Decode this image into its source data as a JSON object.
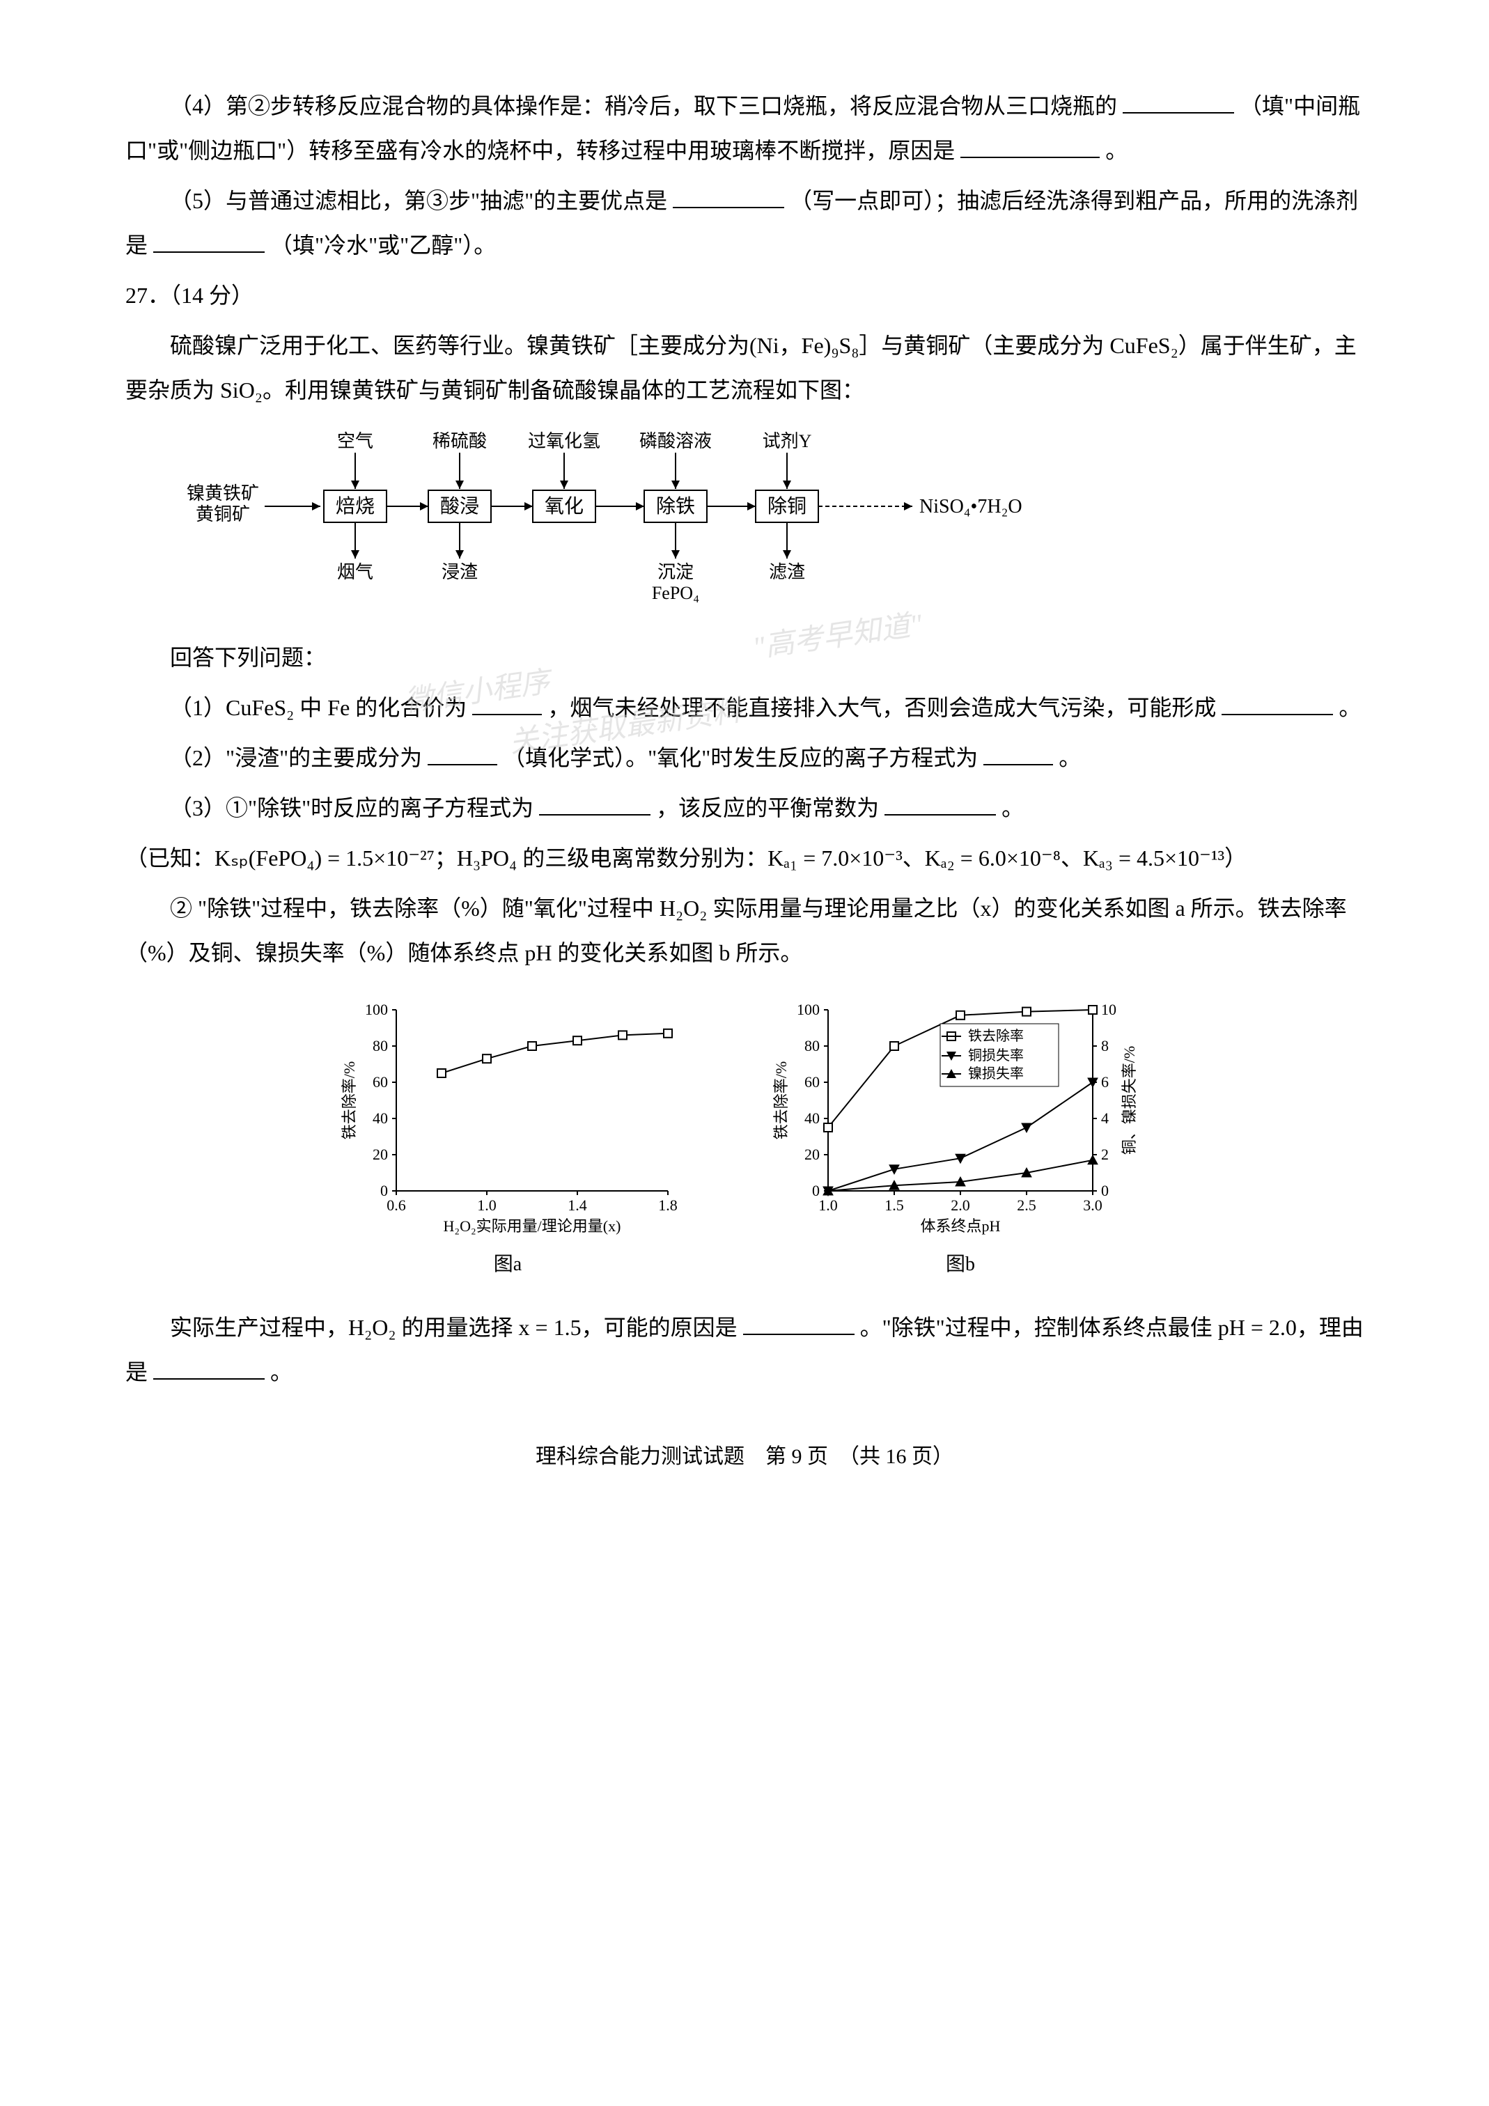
{
  "q_prev": {
    "item4": "（4）第②步转移反应混合物的具体操作是：稍冷后，取下三口烧瓶，将反应混合物从三口烧瓶的",
    "item4_hint": "（填\"中间瓶口\"或\"侧边瓶口\"）转移至盛有冷水的烧杯中，转移过程中用玻璃棒不断搅拌，原因是",
    "item4_end": "。",
    "item5": "（5）与普通过滤相比，第③步\"抽滤\"的主要优点是",
    "item5_hint": "（写一点即可）；抽滤后经洗涤得到粗产品，所用的洗涤剂是",
    "item5_hint2": "（填\"冷水\"或\"乙醇\"）。"
  },
  "q27": {
    "header": "27．（14 分）",
    "intro1": "硫酸镍广泛用于化工、医药等行业。镍黄铁矿［主要成分为(Ni，Fe)₉S₈］与黄铜矿（主要成分为 CuFeS₂）属于伴生矿，主要杂质为 SiO₂。利用镍黄铁矿与黄铜矿制备硫酸镍晶体的工艺流程如下图：",
    "answer_prompt": "回答下列问题：",
    "sub1": "（1）CuFeS₂ 中 Fe 的化合价为",
    "sub1_mid": "，烟气未经处理不能直接排入大气，否则会造成大气污染，可能形成",
    "sub1_end": "。",
    "sub2": "（2）\"浸渣\"的主要成分为",
    "sub2_hint": "（填化学式）。\"氧化\"时发生反应的离子方程式为",
    "sub2_end": "。",
    "sub3_1": "（3）①\"除铁\"时反应的离子方程式为",
    "sub3_1_mid": "，该反应的平衡常数为",
    "sub3_1_end": "。",
    "sub3_known": "（已知：Kₛₚ(FePO₄) = 1.5×10⁻²⁷；H₃PO₄ 的三级电离常数分别为：Kₐ₁ = 7.0×10⁻³、Kₐ₂ = 6.0×10⁻⁸、Kₐ₃ = 4.5×10⁻¹³）",
    "sub3_2a": "② \"除铁\"过程中，铁去除率（%）随\"氧化\"过程中 H₂O₂ 实际用量与理论用量之比（x）的变化关系如图 a 所示。铁去除率（%）及铜、镍损失率（%）随体系终点 pH 的变化关系如图 b 所示。",
    "sub3_2b": "实际生产过程中，H₂O₂ 的用量选择 x = 1.5，可能的原因是",
    "sub3_2b_mid": "。\"除铁\"过程中，控制体系终点最佳 pH = 2.0，理由是",
    "sub3_2b_end": "。"
  },
  "flowchart": {
    "input_label": "镍黄铁矿\n黄铜矿",
    "top_labels": [
      "空气",
      "稀硫酸",
      "过氧化氢",
      "磷酸溶液",
      "试剂Y"
    ],
    "boxes": [
      "焙烧",
      "酸浸",
      "氧化",
      "除铁",
      "除铜"
    ],
    "output": "NiSO₄•7H₂O",
    "bottom_labels": [
      "烟气",
      "浸渣",
      "",
      "沉淀\nFePO₄",
      "滤渣"
    ]
  },
  "chart_a": {
    "type": "line",
    "title": "图a",
    "xlabel": "H₂O₂实际用量/理论用量(x)",
    "ylabel": "铁去除率/%",
    "xlim": [
      0.6,
      1.8
    ],
    "ylim": [
      0,
      100
    ],
    "xtick_step": 0.4,
    "ytick_step": 20,
    "x_values": [
      0.8,
      1.0,
      1.2,
      1.4,
      1.6,
      1.8
    ],
    "y_values": [
      65,
      73,
      80,
      83,
      86,
      87
    ],
    "marker": "square",
    "line_color": "#000000",
    "marker_fill": "#ffffff",
    "background_color": "#ffffff",
    "font_size": 22
  },
  "chart_b": {
    "type": "line",
    "title": "图b",
    "xlabel": "体系终点pH",
    "ylabel_left": "铁去除率/%",
    "ylabel_right": "铜、镍损失率/%",
    "xlim": [
      1.0,
      3.0
    ],
    "ylim_left": [
      0,
      100
    ],
    "ylim_right": [
      0,
      10
    ],
    "xtick_step": 0.5,
    "ytick_left_step": 20,
    "ytick_right_step": 2,
    "series": [
      {
        "name": "铁去除率",
        "marker": "square",
        "fill": "#ffffff",
        "x": [
          1.0,
          1.5,
          2.0,
          2.5,
          3.0
        ],
        "y_left": [
          35,
          80,
          97,
          99,
          100
        ]
      },
      {
        "name": "铜损失率",
        "marker": "triangle-down",
        "fill": "#000000",
        "x": [
          1.0,
          1.5,
          2.0,
          2.5,
          3.0
        ],
        "y_right": [
          0,
          1.2,
          1.8,
          3.5,
          6.0
        ]
      },
      {
        "name": "镍损失率",
        "marker": "triangle-up",
        "fill": "#000000",
        "x": [
          1.0,
          1.5,
          2.0,
          2.5,
          3.0
        ],
        "y_right": [
          0,
          0.3,
          0.5,
          1.0,
          1.7
        ]
      }
    ],
    "legend_labels": [
      "铁去除率",
      "铜损失率",
      "镍损失率"
    ],
    "line_color": "#000000",
    "background_color": "#ffffff",
    "font_size": 22
  },
  "watermark": {
    "line1": "\"高考早知道\"",
    "line2": "微信小程序",
    "line3": "关注获取最新资料"
  },
  "footer": "理科综合能力测试试题　第 9 页　（共 16 页）"
}
